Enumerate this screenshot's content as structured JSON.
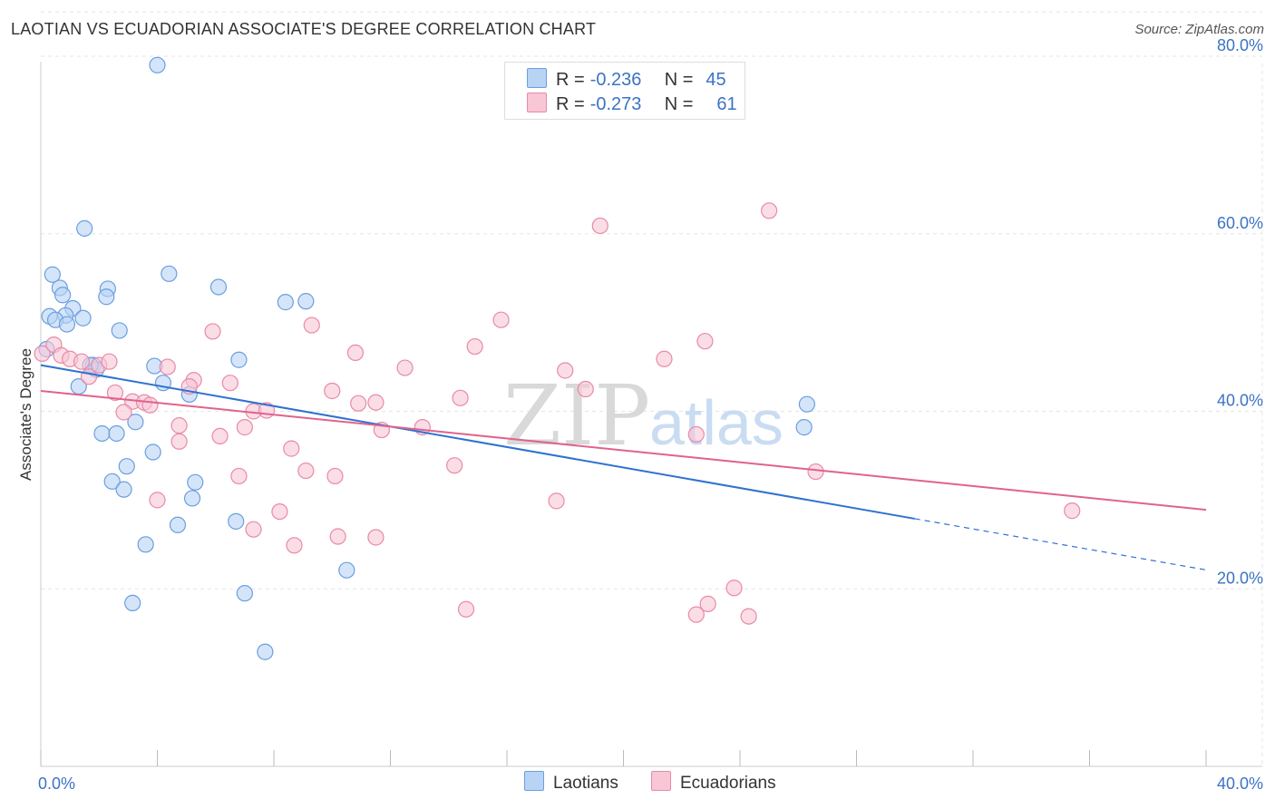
{
  "header": {
    "title": "LAOTIAN VS ECUADORIAN ASSOCIATE'S DEGREE CORRELATION CHART",
    "source": "Source: ZipAtlas.com"
  },
  "legend": {
    "r_label": "R =",
    "n_label": "N =",
    "rows": [
      {
        "r": "-0.236",
        "n": "45",
        "fill": "#b9d3f5",
        "stroke": "#6b9ee0"
      },
      {
        "r": "-0.273",
        "n": "61",
        "fill": "#f9c6d6",
        "stroke": "#e88aa8"
      }
    ]
  },
  "watermark": {
    "zip": "ZIP",
    "atlas": "atlas"
  },
  "colors": {
    "laotian_fill": "#b9d3f5",
    "laotian_stroke": "#6b9ee0",
    "laotian_line": "#2f72d0",
    "ecuadorian_fill": "#f9c6d6",
    "ecuadorian_stroke": "#e88aa8",
    "ecuadorian_line": "#e0628e",
    "tick_label": "#3b73c4",
    "grid": "#e5e5e5"
  },
  "chart_data": {
    "type": "scatter",
    "ylabel": "Associate's Degree",
    "xlim": [
      0,
      40
    ],
    "ylim": [
      0,
      80
    ],
    "x_tick_labels": [
      "0.0%",
      "40.0%"
    ],
    "y_ticks": [
      20,
      40,
      60,
      80
    ],
    "y_tick_labels": [
      "20.0%",
      "40.0%",
      "60.0%",
      "80.0%"
    ],
    "grid": true,
    "legend_position": "bottom",
    "series": [
      {
        "name": "Laotians",
        "points": [
          [
            4.0,
            79.0
          ],
          [
            1.5,
            60.6
          ],
          [
            0.4,
            55.4
          ],
          [
            4.4,
            55.5
          ],
          [
            0.65,
            53.9
          ],
          [
            0.75,
            53.1
          ],
          [
            2.3,
            53.8
          ],
          [
            2.25,
            52.9
          ],
          [
            6.1,
            54.0
          ],
          [
            8.4,
            52.3
          ],
          [
            9.1,
            52.4
          ],
          [
            0.3,
            50.7
          ],
          [
            1.1,
            51.6
          ],
          [
            0.85,
            50.8
          ],
          [
            1.45,
            50.5
          ],
          [
            0.5,
            50.3
          ],
          [
            0.9,
            49.8
          ],
          [
            2.7,
            49.1
          ],
          [
            0.2,
            47.0
          ],
          [
            1.8,
            45.2
          ],
          [
            1.9,
            44.7
          ],
          [
            3.9,
            45.1
          ],
          [
            6.8,
            45.8
          ],
          [
            1.3,
            42.8
          ],
          [
            4.2,
            43.2
          ],
          [
            5.1,
            41.9
          ],
          [
            3.25,
            38.8
          ],
          [
            2.1,
            37.5
          ],
          [
            2.6,
            37.5
          ],
          [
            3.85,
            35.4
          ],
          [
            2.95,
            33.8
          ],
          [
            2.45,
            32.1
          ],
          [
            2.85,
            31.2
          ],
          [
            5.3,
            32.0
          ],
          [
            5.2,
            30.2
          ],
          [
            4.7,
            27.2
          ],
          [
            6.7,
            27.6
          ],
          [
            3.6,
            25.0
          ],
          [
            10.5,
            22.1
          ],
          [
            7.0,
            19.5
          ],
          [
            3.15,
            18.4
          ],
          [
            7.7,
            12.9
          ],
          [
            26.2,
            38.2
          ],
          [
            26.3,
            40.8
          ],
          [
            1.7,
            45.2
          ]
        ]
      },
      {
        "name": "Ecuadorians",
        "points": [
          [
            25.0,
            62.6
          ],
          [
            19.2,
            60.9
          ],
          [
            15.8,
            50.3
          ],
          [
            14.9,
            47.3
          ],
          [
            9.3,
            49.7
          ],
          [
            5.9,
            49.0
          ],
          [
            10.8,
            46.6
          ],
          [
            22.8,
            47.9
          ],
          [
            21.4,
            45.9
          ],
          [
            18.0,
            44.6
          ],
          [
            12.5,
            44.9
          ],
          [
            0.05,
            46.5
          ],
          [
            0.45,
            47.5
          ],
          [
            0.7,
            46.3
          ],
          [
            1.0,
            45.9
          ],
          [
            1.4,
            45.6
          ],
          [
            2.0,
            45.2
          ],
          [
            2.35,
            45.6
          ],
          [
            4.35,
            45.0
          ],
          [
            1.65,
            43.9
          ],
          [
            5.25,
            43.5
          ],
          [
            6.5,
            43.2
          ],
          [
            5.1,
            42.8
          ],
          [
            2.55,
            42.1
          ],
          [
            3.15,
            41.1
          ],
          [
            3.55,
            41.0
          ],
          [
            3.75,
            40.7
          ],
          [
            10.0,
            42.3
          ],
          [
            11.5,
            41.0
          ],
          [
            14.4,
            41.5
          ],
          [
            18.7,
            42.5
          ],
          [
            10.9,
            40.9
          ],
          [
            7.3,
            40.0
          ],
          [
            7.75,
            40.1
          ],
          [
            2.85,
            39.9
          ],
          [
            4.75,
            38.4
          ],
          [
            7.0,
            38.2
          ],
          [
            13.1,
            38.2
          ],
          [
            11.7,
            37.9
          ],
          [
            22.5,
            37.4
          ],
          [
            6.15,
            37.2
          ],
          [
            4.75,
            36.6
          ],
          [
            8.6,
            35.8
          ],
          [
            14.2,
            33.9
          ],
          [
            9.1,
            33.3
          ],
          [
            10.1,
            32.7
          ],
          [
            6.8,
            32.7
          ],
          [
            26.6,
            33.2
          ],
          [
            4.0,
            30.0
          ],
          [
            17.7,
            29.9
          ],
          [
            8.2,
            28.7
          ],
          [
            35.4,
            28.8
          ],
          [
            7.3,
            26.7
          ],
          [
            10.2,
            25.9
          ],
          [
            11.5,
            25.8
          ],
          [
            8.7,
            24.9
          ],
          [
            23.8,
            20.1
          ],
          [
            22.9,
            18.3
          ],
          [
            14.6,
            17.7
          ],
          [
            22.5,
            17.1
          ],
          [
            24.3,
            16.9
          ]
        ]
      }
    ],
    "trendlines": [
      {
        "series": "Laotians",
        "x": [
          0,
          30
        ],
        "y": [
          45.2,
          27.9
        ],
        "dashed_extension_to_x": 40
      },
      {
        "series": "Ecuadorians",
        "x": [
          0,
          40
        ],
        "y": [
          42.3,
          28.9
        ]
      }
    ]
  }
}
